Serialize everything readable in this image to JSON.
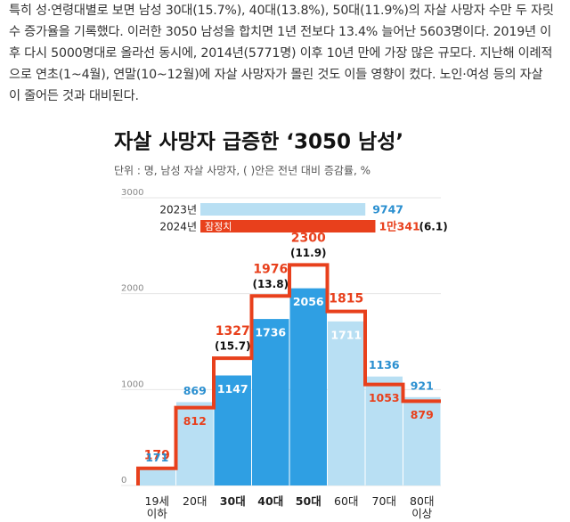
{
  "article": {
    "paragraph": "특히 성·연령대별로 보면 남성 30대(15.7%), 40대(13.8%), 50대(11.9%)의 자살 사망자 수만 두 자릿수 증가율을 기록했다. 이러한 3050 남성을 합치면 1년 전보다 13.4% 늘어난 5603명이다. 2019년 이후 다시 5000명대로 올라선 동시에, 2014년(5771명) 이후 10년 만에 가장 많은 규모다. 지난해 이례적으로 연초(1~4월), 연말(10~12월)에 자살 사망자가 몰린 것도 이들 영향이 컸다. 노인·여성 등의 자살이 줄어든 것과 대비된다."
  },
  "chart_data": {
    "type": "bar-step",
    "title": "자살 사망자 급증한 ‘3050 남성’",
    "subtitle": "단위 : 명, 남성 자살 사망자, ( )안은 전년 대비 증감률, %",
    "categories": [
      "19세 이하",
      "20대",
      "30대",
      "40대",
      "50대",
      "60대",
      "70대",
      "80대 이상"
    ],
    "highlight_indices": [
      2,
      3,
      4
    ],
    "series": [
      {
        "name": "2023년",
        "color": "#b8dff3",
        "highlight_color": "#2f9fe3",
        "text_color": "#2a8fd0",
        "values": [
          171,
          869,
          1147,
          1736,
          2056,
          1711,
          1136,
          921
        ],
        "total": 9747
      },
      {
        "name": "2024년",
        "color": "#e8401c",
        "note": "잠정치",
        "values": [
          179,
          812,
          1327,
          1976,
          2300,
          1815,
          1053,
          879
        ],
        "total": 10341,
        "total_label": "1만341",
        "total_change": 6.1,
        "total_change_label": "(6.1)",
        "change": [
          null,
          null,
          15.7,
          13.8,
          11.9,
          null,
          null,
          null
        ],
        "change_labels": [
          null,
          null,
          "(15.7)",
          "(13.8)",
          "(11.9)",
          null,
          null,
          null
        ]
      }
    ],
    "ylim": [
      0,
      3000
    ],
    "yticks": [
      0,
      1000,
      2000,
      3000
    ],
    "grid": true
  }
}
